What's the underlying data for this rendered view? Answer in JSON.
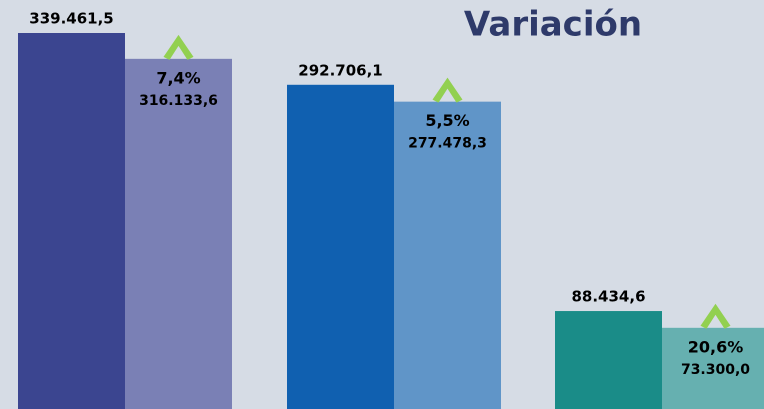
{
  "chart_data": {
    "type": "bar",
    "title": "Variación",
    "groups": [
      {
        "values": [
          339461.5,
          316133.6
        ],
        "value_labels": [
          "339.461,5",
          "316.133,6"
        ],
        "colors": [
          "#3b4590",
          "#7a80b5"
        ],
        "variation": 7.4,
        "variation_label": "7,4%"
      },
      {
        "values": [
          292706.1,
          277478.3
        ],
        "value_labels": [
          "292.706,1",
          "277.478,3"
        ],
        "colors": [
          "#1060b0",
          "#6095c8"
        ],
        "variation": 5.5,
        "variation_label": "5,5%"
      },
      {
        "values": [
          88434.6,
          73300.0
        ],
        "value_labels": [
          "88.434,6",
          "73.300,0"
        ],
        "colors": [
          "#1a8c88",
          "#66b0b0"
        ],
        "variation": 20.6,
        "variation_label": "20,6%"
      }
    ],
    "arrow_color": "#92d050"
  }
}
